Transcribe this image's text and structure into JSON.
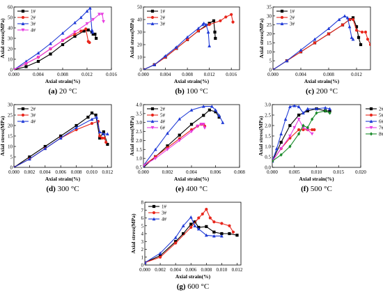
{
  "figure": {
    "panels_count": 7
  },
  "chart_data": [
    {
      "type": "line",
      "panel_label": "(a)",
      "caption": "20 °C",
      "xlabel": "Axial strain(%)",
      "ylabel": "Axial stress(MPa)",
      "xlim": [
        0,
        0.016
      ],
      "ylim": [
        0,
        60
      ],
      "xticks": [
        "0.000",
        "0.004",
        "0.008",
        "0.012",
        "0.016"
      ],
      "xtick_values": [
        0,
        0.004,
        0.008,
        0.012,
        0.016
      ],
      "yticks": [
        "0",
        "10",
        "20",
        "30",
        "40",
        "50",
        "60"
      ],
      "ytick_values": [
        0,
        10,
        20,
        30,
        40,
        50,
        60
      ],
      "legend_position": "top-left",
      "series": [
        {
          "name": "1#",
          "color": "#000000",
          "marker": "square",
          "x": [
            0,
            0.002,
            0.004,
            0.006,
            0.008,
            0.01,
            0.0115,
            0.0122,
            0.0128,
            0.013,
            0.0133,
            0.0135
          ],
          "y": [
            0,
            3,
            8,
            15,
            24,
            32,
            37,
            38,
            36,
            34,
            34,
            30
          ]
        },
        {
          "name": "2#",
          "color": "#e8261c",
          "marker": "circle",
          "x": [
            0,
            0.002,
            0.004,
            0.006,
            0.008,
            0.01,
            0.011,
            0.0118,
            0.0122,
            0.0124
          ],
          "y": [
            0,
            6,
            12,
            20,
            28,
            34,
            37,
            39,
            27,
            26
          ]
        },
        {
          "name": "3#",
          "color": "#1f3ad6",
          "marker": "triangle",
          "x": [
            0,
            0.002,
            0.004,
            0.006,
            0.008,
            0.01,
            0.011,
            0.012,
            0.0125,
            0.0128,
            0.0129
          ],
          "y": [
            0,
            8,
            16,
            25,
            35,
            45,
            50,
            56,
            59,
            38,
            36
          ]
        },
        {
          "name": "4#",
          "color": "#e83ce0",
          "marker": "triangle-down",
          "x": [
            0,
            0.002,
            0.004,
            0.006,
            0.008,
            0.01,
            0.012,
            0.013,
            0.014,
            0.0145,
            0.0147
          ],
          "y": [
            0,
            6,
            12,
            20,
            28,
            36,
            44,
            48,
            53,
            53,
            46
          ]
        }
      ]
    },
    {
      "type": "line",
      "panel_label": "(b)",
      "caption": "100 °C",
      "xlabel": "Axial strain(%)",
      "ylabel": "Axial stress(MPa)",
      "xlim": [
        0,
        0.0175
      ],
      "ylim": [
        0,
        50
      ],
      "xticks": [
        "0.000",
        "0.004",
        "0.008",
        "0.012",
        "0.016"
      ],
      "xtick_values": [
        0,
        0.004,
        0.008,
        0.012,
        0.016
      ],
      "yticks": [
        "0",
        "10",
        "20",
        "30",
        "40",
        "50"
      ],
      "ytick_values": [
        0,
        10,
        20,
        30,
        40,
        50
      ],
      "legend_position": "top-left",
      "series": [
        {
          "name": "1#",
          "color": "#000000",
          "marker": "square",
          "x": [
            0,
            0.002,
            0.004,
            0.006,
            0.008,
            0.01,
            0.012,
            0.0128,
            0.013,
            0.0131
          ],
          "y": [
            0,
            4,
            10,
            17,
            24,
            31,
            37,
            39,
            30,
            25
          ]
        },
        {
          "name": "2#",
          "color": "#e8261c",
          "marker": "circle",
          "x": [
            0,
            0.002,
            0.004,
            0.006,
            0.008,
            0.01,
            0.012,
            0.014,
            0.015,
            0.016,
            0.0163
          ],
          "y": [
            0,
            4,
            10,
            17,
            24,
            31,
            36,
            39,
            42,
            44,
            38
          ]
        },
        {
          "name": "3#",
          "color": "#1f3ad6",
          "marker": "triangle",
          "x": [
            0,
            0.002,
            0.004,
            0.006,
            0.008,
            0.01,
            0.0108,
            0.011,
            0.0114,
            0.0118,
            0.012
          ],
          "y": [
            0,
            4,
            11,
            18,
            26,
            33,
            36,
            37,
            36,
            30,
            19
          ]
        }
      ]
    },
    {
      "type": "line",
      "panel_label": "(c)",
      "caption": "200 °C",
      "xlabel": "Axial strain(%)",
      "ylabel": "Axial stress(MPa)",
      "xlim": [
        0,
        0.014
      ],
      "ylim": [
        0,
        35
      ],
      "xticks": [
        "0.000",
        "0.004",
        "0.008",
        "0.012"
      ],
      "xtick_values": [
        0,
        0.004,
        0.008,
        0.012
      ],
      "yticks": [
        "0",
        "5",
        "10",
        "15",
        "20",
        "25",
        "30",
        "35"
      ],
      "ytick_values": [
        0,
        5,
        10,
        15,
        20,
        25,
        30,
        35
      ],
      "legend_position": "top-left",
      "series": [
        {
          "name": "1#",
          "color": "#000000",
          "marker": "square",
          "x": [
            0,
            0.002,
            0.004,
            0.006,
            0.008,
            0.01,
            0.011,
            0.0115,
            0.012,
            0.0123,
            0.0126
          ],
          "y": [
            0,
            5,
            10,
            15,
            20,
            25,
            28,
            29,
            24,
            18,
            14
          ]
        },
        {
          "name": "2#",
          "color": "#e8261c",
          "marker": "circle",
          "x": [
            0,
            0.002,
            0.004,
            0.006,
            0.008,
            0.01,
            0.011,
            0.0115,
            0.012,
            0.0128,
            0.0133,
            0.0136,
            0.014
          ],
          "y": [
            0,
            5,
            10,
            15,
            20,
            25,
            28,
            28,
            22,
            21,
            21,
            17,
            14
          ]
        },
        {
          "name": "3#",
          "color": "#1f3ad6",
          "marker": "triangle",
          "x": [
            0,
            0.002,
            0.004,
            0.006,
            0.008,
            0.0095,
            0.0103,
            0.0107,
            0.011,
            0.0113,
            0.0115
          ],
          "y": [
            0,
            5,
            11,
            17,
            23,
            28,
            30,
            29,
            24,
            18,
            17
          ]
        }
      ]
    },
    {
      "type": "line",
      "panel_label": "(d)",
      "caption": "300 °C",
      "xlabel": "Axial strain(%)",
      "ylabel": "Axial stress(MPa)",
      "xlim": [
        0,
        0.0125
      ],
      "ylim": [
        0,
        30
      ],
      "xticks": [
        "0.000",
        "0.002",
        "0.004",
        "0.006",
        "0.008",
        "0.010",
        "0.012"
      ],
      "xtick_values": [
        0,
        0.002,
        0.004,
        0.006,
        0.008,
        0.01,
        0.012
      ],
      "yticks": [
        "0",
        "5",
        "10",
        "15",
        "20",
        "25",
        "30"
      ],
      "ytick_values": [
        0,
        5,
        10,
        15,
        20,
        25,
        30
      ],
      "legend_position": "top-left",
      "series": [
        {
          "name": "2#",
          "color": "#000000",
          "marker": "square",
          "x": [
            0,
            0.002,
            0.004,
            0.006,
            0.008,
            0.0095,
            0.01,
            0.0105,
            0.011,
            0.0115,
            0.012
          ],
          "y": [
            0,
            5,
            10,
            15,
            20,
            24,
            26,
            25,
            14,
            17,
            11
          ]
        },
        {
          "name": "3#",
          "color": "#e8261c",
          "marker": "circle",
          "x": [
            0,
            0.002,
            0.004,
            0.006,
            0.008,
            0.01,
            0.0108,
            0.011,
            0.0113,
            0.0116,
            0.0118
          ],
          "y": [
            0,
            4,
            9,
            14,
            18,
            21,
            22,
            15,
            14,
            14,
            12
          ]
        },
        {
          "name": "4#",
          "color": "#1f3ad6",
          "marker": "triangle",
          "x": [
            0,
            0.002,
            0.004,
            0.006,
            0.008,
            0.01,
            0.0106,
            0.011,
            0.0115,
            0.012
          ],
          "y": [
            0,
            4,
            9,
            14,
            19,
            23,
            24,
            17,
            16,
            16
          ]
        }
      ]
    },
    {
      "type": "line",
      "panel_label": "(e)",
      "caption": "400 °C",
      "xlabel": "Axial strain(%)",
      "ylabel": "Axial stress(MPa)",
      "xlim": [
        0,
        0.008
      ],
      "ylim": [
        0.5,
        4.0
      ],
      "xticks": [
        "0.000",
        "0.002",
        "0.004",
        "0.006",
        "0.008"
      ],
      "xtick_values": [
        0,
        0.002,
        0.004,
        0.006,
        0.008
      ],
      "yticks": [
        "0.5",
        "1.0",
        "1.5",
        "2.0",
        "2.5",
        "3.0",
        "3.5",
        "4.0"
      ],
      "ytick_values": [
        0.5,
        1.0,
        1.5,
        2.0,
        2.5,
        3.0,
        3.5,
        4.0
      ],
      "legend_position": "top-left",
      "series": [
        {
          "name": "2#",
          "color": "#000000",
          "marker": "square",
          "x": [
            0,
            0.001,
            0.002,
            0.003,
            0.004,
            0.005,
            0.0055,
            0.006,
            0.0063
          ],
          "y": [
            0.5,
            1.1,
            1.7,
            2.3,
            2.9,
            3.4,
            3.7,
            3.6,
            3.3
          ]
        },
        {
          "name": "5#",
          "color": "#e8261c",
          "marker": "circle",
          "x": [
            0,
            0.001,
            0.002,
            0.003,
            0.004,
            0.0045,
            0.0048,
            0.005,
            0.0051
          ],
          "y": [
            0.6,
            1.1,
            1.6,
            2.1,
            2.6,
            2.8,
            2.9,
            2.9,
            2.8
          ]
        },
        {
          "name": "4#",
          "color": "#1f3ad6",
          "marker": "triangle",
          "x": [
            0,
            0.001,
            0.002,
            0.003,
            0.004,
            0.005,
            0.0057,
            0.006,
            0.0063,
            0.0066
          ],
          "y": [
            0.6,
            1.5,
            2.4,
            3.2,
            3.7,
            3.9,
            3.9,
            3.7,
            3.4,
            3.0
          ]
        },
        {
          "name": "6#",
          "color": "#e83ce0",
          "marker": "triangle-down",
          "x": [
            0,
            0.001,
            0.002,
            0.003,
            0.004,
            0.0045,
            0.0048,
            0.005,
            0.0051
          ],
          "y": [
            0.6,
            1.0,
            1.5,
            2.0,
            2.5,
            2.8,
            2.9,
            2.9,
            2.7
          ]
        }
      ]
    },
    {
      "type": "line",
      "panel_label": "(f)",
      "caption": "500 °C",
      "xlabel": "Axial strain(%)",
      "ylabel": "Axial stress(MPa)",
      "xlim": [
        0,
        0.02
      ],
      "ylim": [
        0.0,
        3.0
      ],
      "xticks": [
        "0.000",
        "0.005",
        "0.010",
        "0.015",
        "0.020"
      ],
      "xtick_values": [
        0,
        0.005,
        0.01,
        0.015,
        0.02
      ],
      "yticks": [
        "0.0",
        "0.5",
        "1.0",
        "1.5",
        "2.0",
        "2.5",
        "3.0"
      ],
      "ytick_values": [
        0,
        0.5,
        1.0,
        1.5,
        2.0,
        2.5,
        3.0
      ],
      "legend_position": "right-outside",
      "series": [
        {
          "name": "2#",
          "color": "#000000",
          "marker": "square",
          "x": [
            0,
            0.002,
            0.004,
            0.006,
            0.008,
            0.01,
            0.012,
            0.013
          ],
          "y": [
            0.3,
            1.2,
            2.0,
            2.5,
            2.7,
            2.8,
            2.7,
            2.7
          ]
        },
        {
          "name": "5#",
          "color": "#e8261c",
          "marker": "circle",
          "x": [
            0,
            0.002,
            0.004,
            0.006,
            0.007,
            0.008,
            0.009,
            0.0095
          ],
          "y": [
            0.3,
            0.9,
            1.4,
            1.8,
            1.8,
            1.8,
            1.8,
            1.8
          ]
        },
        {
          "name": "6#",
          "color": "#1f3ad6",
          "marker": "triangle",
          "x": [
            0,
            0.001,
            0.002,
            0.003,
            0.004,
            0.005,
            0.006,
            0.007,
            0.008,
            0.01,
            0.012,
            0.013
          ],
          "y": [
            0.3,
            0.9,
            1.6,
            2.3,
            2.9,
            2.95,
            2.9,
            2.6,
            2.8,
            2.8,
            2.85,
            2.8
          ]
        },
        {
          "name": "7#",
          "color": "#e83ce0",
          "marker": "triangle-down",
          "x": [
            0,
            0.002,
            0.004,
            0.005,
            0.006,
            0.007,
            0.008,
            0.009
          ],
          "y": [
            0.3,
            0.9,
            1.5,
            1.9,
            2.3,
            1.9,
            1.8,
            1.6
          ]
        },
        {
          "name": "8#",
          "color": "#1a8a2a",
          "marker": "diamond",
          "x": [
            0,
            0.002,
            0.004,
            0.006,
            0.007,
            0.008,
            0.009,
            0.01,
            0.012,
            0.013
          ],
          "y": [
            0.3,
            0.6,
            1.0,
            1.6,
            2.0,
            1.9,
            2.3,
            2.6,
            2.7,
            2.6
          ]
        }
      ]
    },
    {
      "type": "line",
      "panel_label": "(g)",
      "caption": "600 °C",
      "xlabel": "Axial strain(%)",
      "ylabel": "Axial stress(MPa)",
      "xlim": [
        0,
        0.0125
      ],
      "ylim": [
        0,
        8
      ],
      "xticks": [
        "0.000",
        "0.002",
        "0.004",
        "0.006",
        "0.008",
        "0.010",
        "0.012"
      ],
      "xtick_values": [
        0,
        0.002,
        0.004,
        0.006,
        0.008,
        0.01,
        0.012
      ],
      "yticks": [
        "0",
        "1",
        "2",
        "3",
        "4",
        "5",
        "6",
        "7",
        "8"
      ],
      "ytick_values": [
        0,
        1,
        2,
        3,
        4,
        5,
        6,
        7,
        8
      ],
      "legend_position": "top-left",
      "series": [
        {
          "name": "1#",
          "color": "#000000",
          "marker": "square",
          "x": [
            0,
            0.002,
            0.004,
            0.005,
            0.006,
            0.0065,
            0.007,
            0.008,
            0.009,
            0.01,
            0.011,
            0.012
          ],
          "y": [
            0.3,
            1.2,
            3.0,
            4.0,
            5.2,
            5.5,
            4.8,
            4.9,
            4.2,
            4.0,
            4.0,
            3.8
          ]
        },
        {
          "name": "3#",
          "color": "#e8261c",
          "marker": "circle",
          "x": [
            0,
            0.002,
            0.004,
            0.006,
            0.007,
            0.0075,
            0.008,
            0.0085,
            0.009,
            0.01,
            0.011,
            0.0115
          ],
          "y": [
            0.3,
            1.0,
            2.8,
            4.8,
            6.0,
            6.5,
            7.1,
            6.0,
            5.5,
            5.3,
            5.0,
            4.2
          ]
        },
        {
          "name": "4#",
          "color": "#1f3ad6",
          "marker": "triangle",
          "x": [
            0,
            0.002,
            0.004,
            0.005,
            0.006,
            0.0065,
            0.007,
            0.008,
            0.009,
            0.01
          ],
          "y": [
            0.3,
            1.5,
            3.5,
            5.0,
            6.1,
            5.0,
            4.6,
            3.8,
            3.7,
            3.7
          ]
        }
      ]
    }
  ]
}
